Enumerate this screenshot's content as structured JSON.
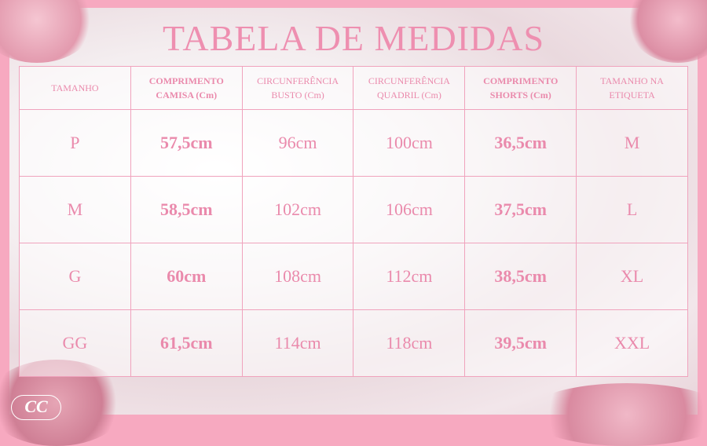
{
  "title": "TABELA DE MEDIDAS",
  "colors": {
    "accent": "#ea8aac",
    "border": "#f0a3bd",
    "frame": "#f7a9c0"
  },
  "logo": "CC",
  "table": {
    "headers": [
      {
        "label": "TAMANHO",
        "bold": false
      },
      {
        "label": "COMPRIMENTO CAMISA (Cm)",
        "bold": true
      },
      {
        "label": "CIRCUNFERÊNCIA BUSTO (Cm)",
        "bold": false
      },
      {
        "label": "CIRCUNFERÊNCIA QUADRIL (Cm)",
        "bold": false
      },
      {
        "label": "COMPRIMENTO SHORTS (Cm)",
        "bold": true
      },
      {
        "label": "TAMANHO NA ETIQUETA",
        "bold": false
      }
    ],
    "rows": [
      [
        "P",
        "57,5cm",
        "96cm",
        "100cm",
        "36,5cm",
        "M"
      ],
      [
        "M",
        "58,5cm",
        "102cm",
        "106cm",
        "37,5cm",
        "L"
      ],
      [
        "G",
        "60cm",
        "108cm",
        "112cm",
        "38,5cm",
        "XL"
      ],
      [
        "GG",
        "61,5cm",
        "114cm",
        "118cm",
        "39,5cm",
        "XXL"
      ]
    ]
  }
}
